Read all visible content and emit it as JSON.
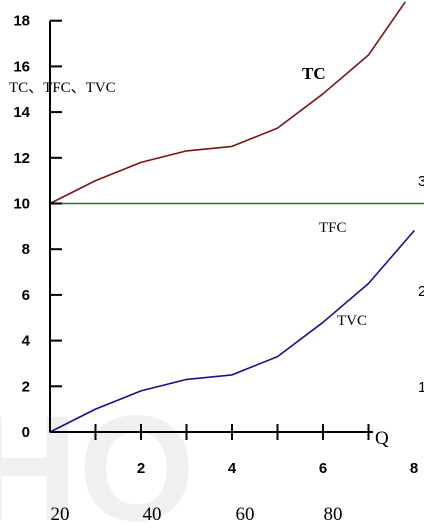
{
  "chart_data": {
    "type": "line",
    "title": "",
    "ylabel": "TC、TFC、TVC",
    "xlabel": "Q",
    "xlim": [
      0,
      8
    ],
    "ylim": [
      0,
      18
    ],
    "x_ticks": [
      0,
      1,
      2,
      3,
      4,
      5,
      6,
      7,
      8
    ],
    "x_tick_labels": [
      {
        "x": 2,
        "label": "2"
      },
      {
        "x": 4,
        "label": "4"
      },
      {
        "x": 6,
        "label": "6"
      },
      {
        "x": 8,
        "label": "8"
      }
    ],
    "y_ticks": [
      0,
      2,
      4,
      6,
      8,
      10,
      12,
      14,
      16,
      18
    ],
    "y_tick_labels": [
      "0",
      "2",
      "4",
      "6",
      "8",
      "10",
      "12",
      "14",
      "16",
      "18"
    ],
    "series": [
      {
        "name": "TC",
        "color": "#7b1414",
        "x": [
          0,
          1,
          2,
          3,
          4,
          5,
          6,
          7,
          7.8
        ],
        "y": [
          10,
          11,
          11.8,
          12.3,
          12.5,
          13.3,
          14.8,
          16.5,
          18.8
        ]
      },
      {
        "name": "TFC",
        "color": "#1a7f1a",
        "x": [
          0,
          8.5
        ],
        "y": [
          10,
          10
        ]
      },
      {
        "name": "TVC",
        "color": "#14148a",
        "x": [
          0,
          1,
          2,
          3,
          4,
          5,
          6,
          7,
          8
        ],
        "y": [
          0,
          1,
          1.8,
          2.3,
          2.5,
          3.3,
          4.8,
          6.5,
          8.8
        ]
      }
    ],
    "bottom_labels": [
      "20",
      "40",
      "60",
      "80"
    ],
    "right_edge_labels": [
      "3",
      "2",
      "1"
    ]
  },
  "colors": {
    "axis": "#000000",
    "watermark": "#f1eef0"
  }
}
